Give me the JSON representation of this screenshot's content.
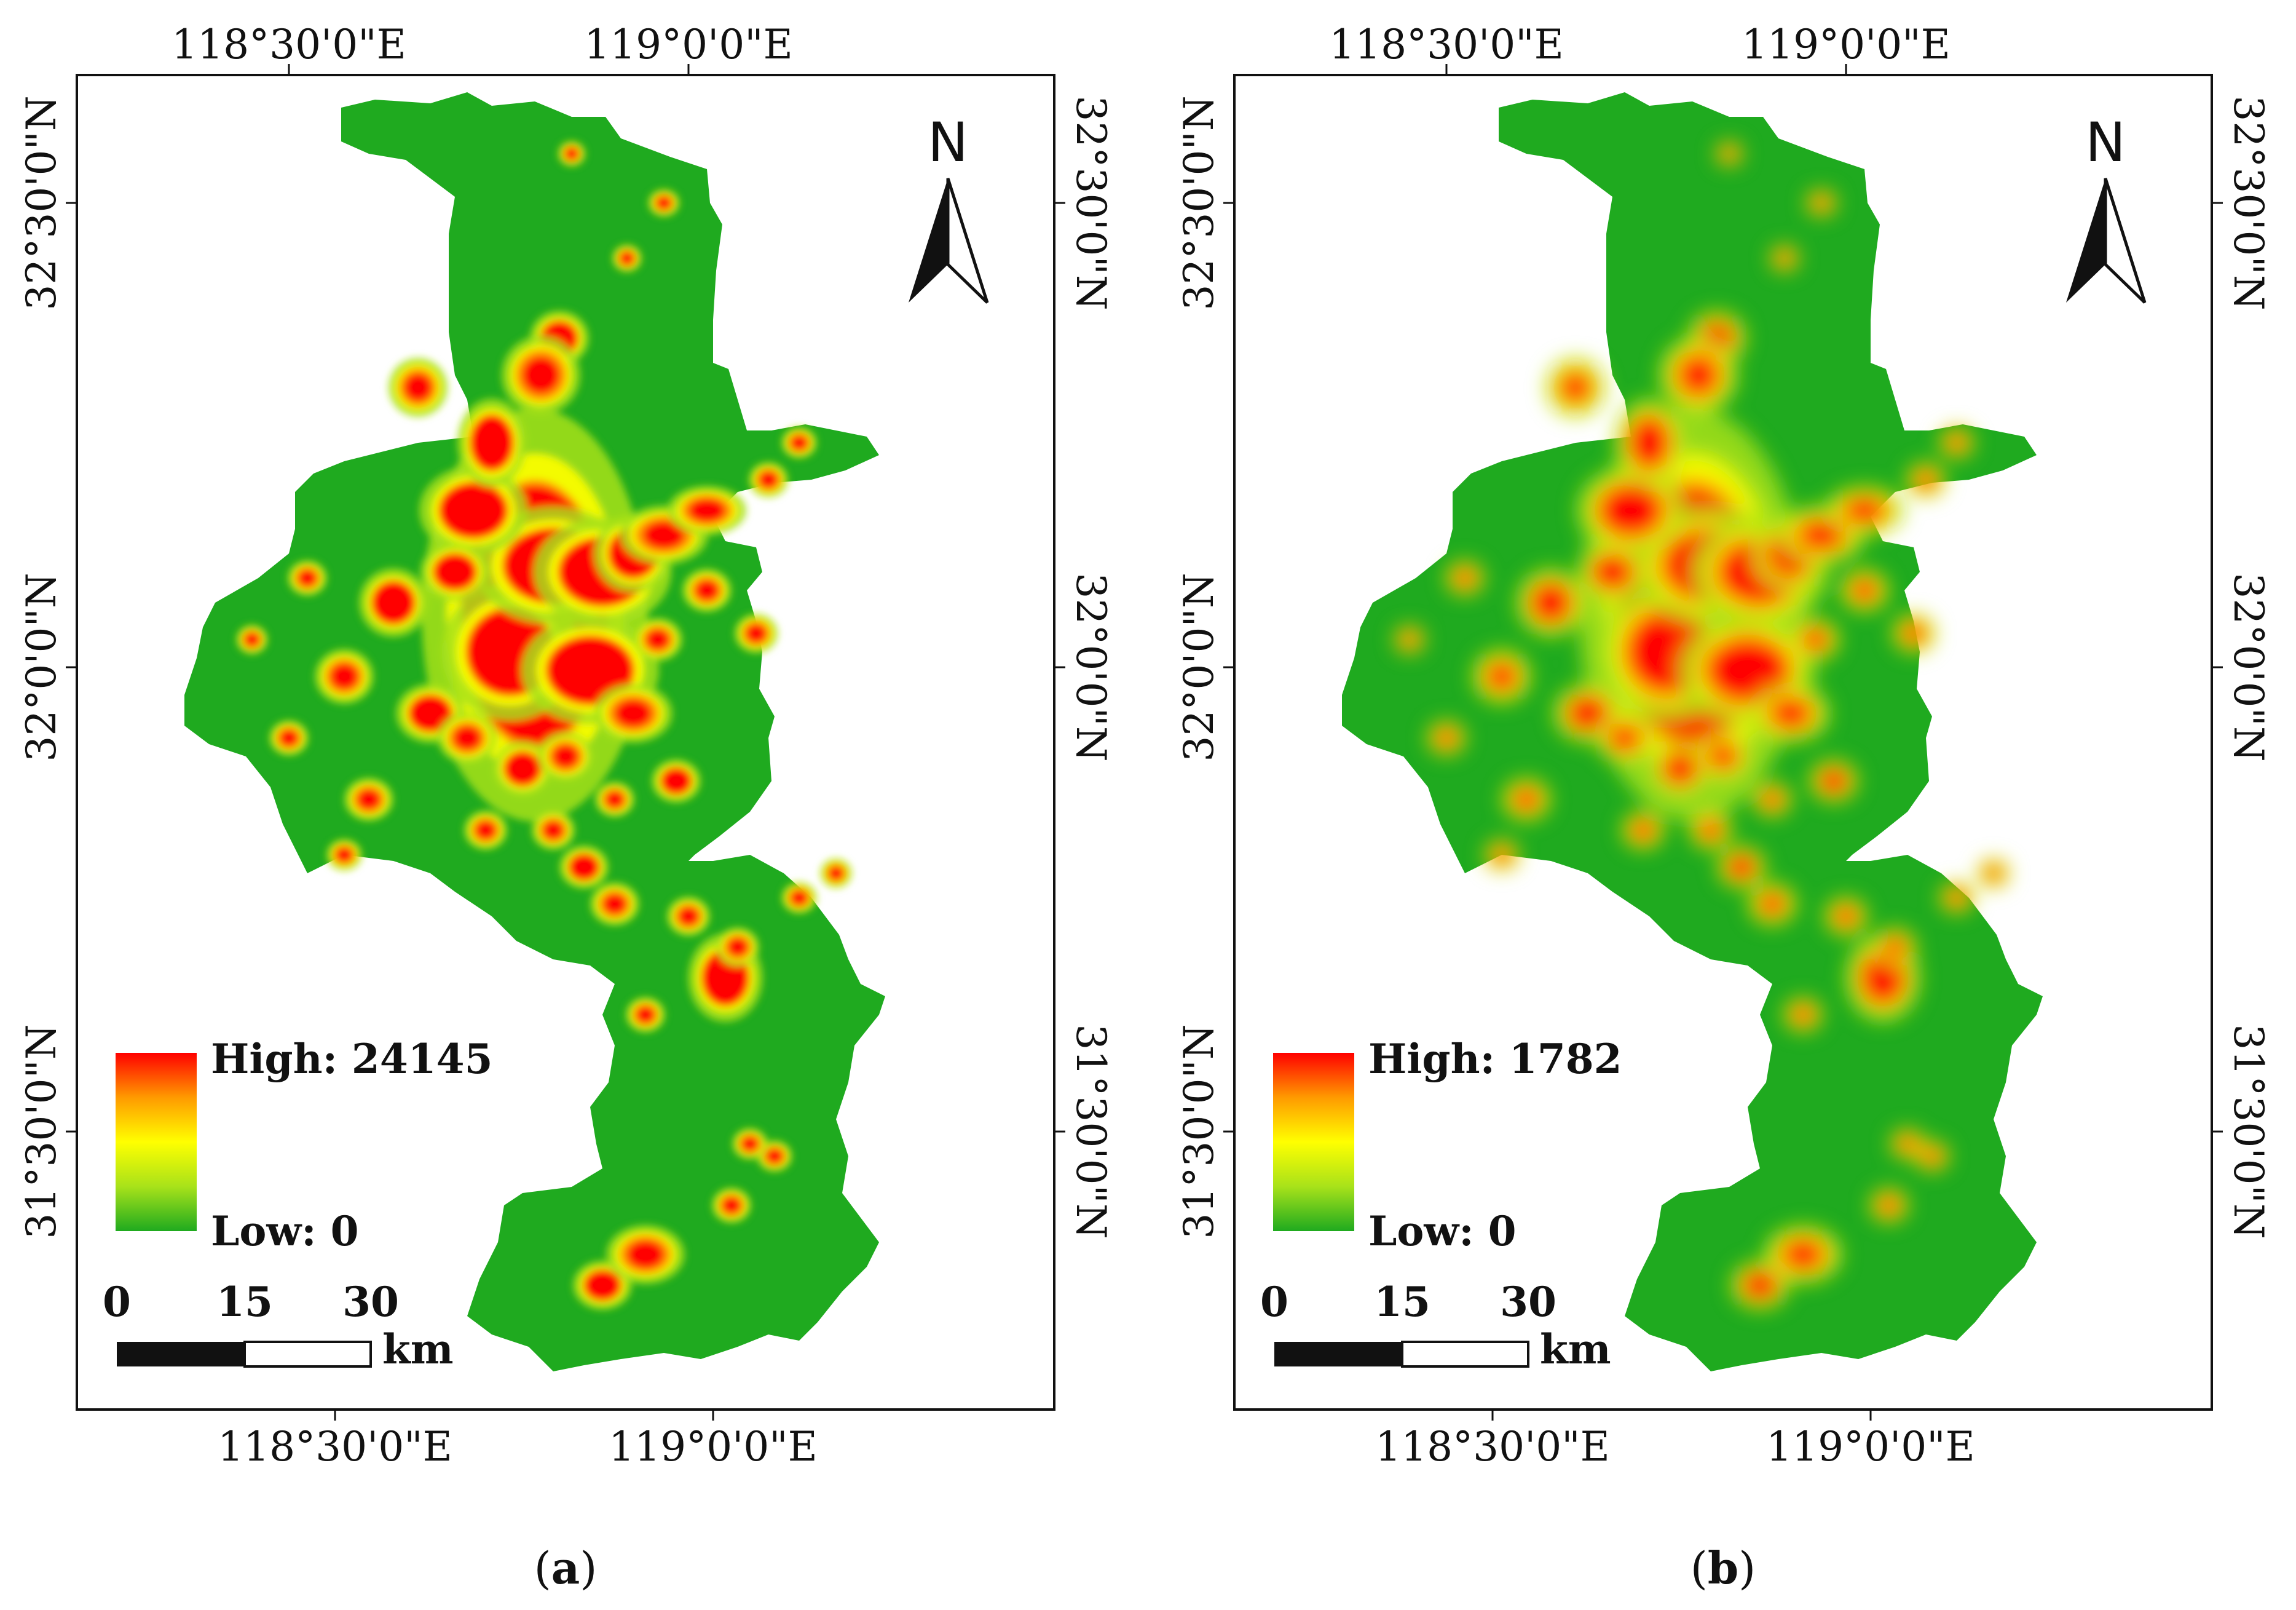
{
  "panels": [
    {
      "id": "a",
      "caption_letter": "a",
      "legend": {
        "high_label": "High: 24145",
        "low_label": "Low: 0"
      },
      "scale_bar": {
        "ticks": [
          "0",
          "15",
          "30"
        ],
        "unit": "km"
      },
      "north_label": "N",
      "top_lon_ticks": [
        "118°30'0\"E",
        "119°0'0\"E"
      ],
      "bottom_lon_ticks": [
        "118°30'0\"E",
        "119°0'0\"E"
      ],
      "left_lat_ticks": [
        "32°30'0\"N",
        "32°0'0\"N",
        "31°30'0\"N"
      ],
      "right_lat_ticks": [
        "32°30'0\"N",
        "32°0'0\"N",
        "31°30'0\"N"
      ]
    },
    {
      "id": "b",
      "caption_letter": "b",
      "legend": {
        "high_label": "High: 1782",
        "low_label": "Low: 0"
      },
      "scale_bar": {
        "ticks": [
          "0",
          "15",
          "30"
        ],
        "unit": "km"
      },
      "north_label": "N",
      "top_lon_ticks": [
        "118°30'0\"E",
        "119°0'0\"E"
      ],
      "bottom_lon_ticks": [
        "118°30'0\"E",
        "119°0'0\"E"
      ],
      "left_lat_ticks": [
        "32°30'0\"N",
        "32°0'0\"N",
        "31°30'0\"N"
      ],
      "right_lat_ticks": [
        "32°30'0\"N",
        "32°0'0\"N",
        "31°30'0\"N"
      ]
    }
  ],
  "colors": {
    "ramp_low": "#1faa1f",
    "ramp_mid_low": "#a8e21a",
    "ramp_mid": "#ffff00",
    "ramp_mid_high": "#ff9a00",
    "ramp_high": "#ff0000",
    "frame": "#111111"
  }
}
